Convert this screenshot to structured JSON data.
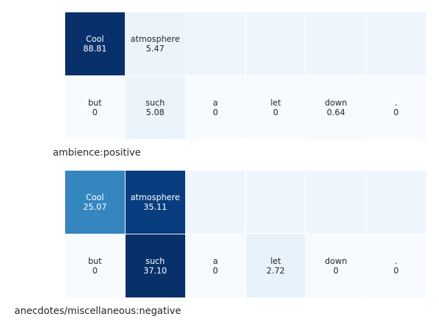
{
  "colormap": {
    "name": "Blues",
    "stops": [
      "#f7fbff",
      "#deebf7",
      "#c6dbef",
      "#9ecae1",
      "#6baed6",
      "#4292c6",
      "#2171b5",
      "#08519c",
      "#08306b"
    ],
    "empty_cell_color": "#eff5fd"
  },
  "chart_data": [
    {
      "type": "heatmap",
      "title": "ambience:positive",
      "columns": 6,
      "rows": [
        {
          "cells": [
            {
              "token": "Cool",
              "value": 88.81,
              "label": "88.81"
            },
            {
              "token": "atmosphere",
              "value": 5.47,
              "label": "5.47"
            },
            null,
            null,
            null,
            null
          ]
        },
        {
          "cells": [
            {
              "token": "but",
              "value": 0,
              "label": "0"
            },
            {
              "token": "such",
              "value": 5.08,
              "label": "5.08"
            },
            {
              "token": "a",
              "value": 0,
              "label": "0"
            },
            {
              "token": "let",
              "value": 0,
              "label": "0"
            },
            {
              "token": "down",
              "value": 0.64,
              "label": "0.64"
            },
            {
              "token": ".",
              "value": 0,
              "label": "0"
            }
          ]
        }
      ]
    },
    {
      "type": "heatmap",
      "title": "anecdotes/miscellaneous:negative",
      "columns": 6,
      "rows": [
        {
          "cells": [
            {
              "token": "Cool",
              "value": 25.07,
              "label": "25.07"
            },
            {
              "token": "atmosphere",
              "value": 35.11,
              "label": "35.11"
            },
            null,
            null,
            null,
            null
          ]
        },
        {
          "cells": [
            {
              "token": "but",
              "value": 0,
              "label": "0"
            },
            {
              "token": "such",
              "value": 37.1,
              "label": "37.10"
            },
            {
              "token": "a",
              "value": 0,
              "label": "0"
            },
            {
              "token": "let",
              "value": 2.72,
              "label": "2.72"
            },
            {
              "token": "down",
              "value": 0,
              "label": "0"
            },
            {
              "token": ".",
              "value": 0,
              "label": "0"
            }
          ]
        }
      ]
    }
  ]
}
